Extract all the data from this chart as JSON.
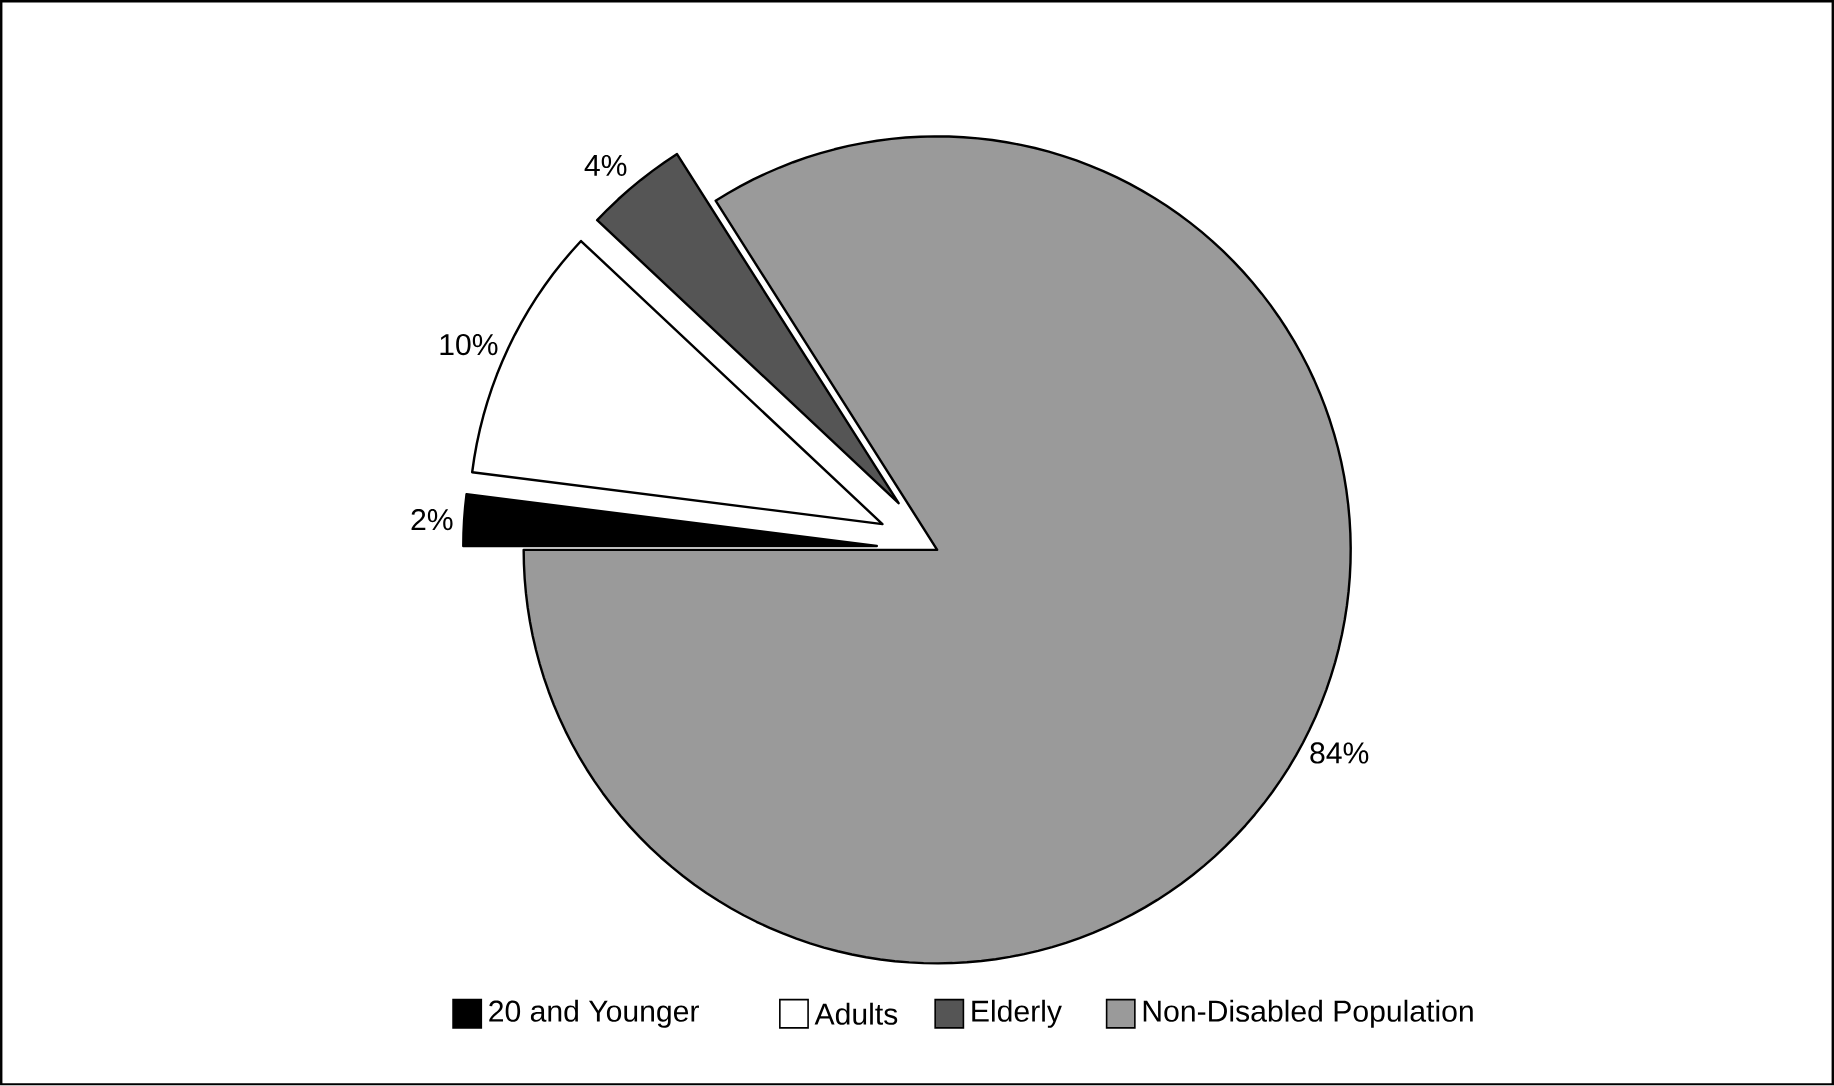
{
  "chart_data": {
    "type": "pie",
    "categories": [
      "20 and Younger",
      "Adults",
      "Elderly",
      "Non-Disabled Population"
    ],
    "values": [
      2,
      10,
      4,
      84
    ],
    "colors": [
      "#000000",
      "#ffffff",
      "#555555",
      "#9a9a9a"
    ],
    "value_labels": [
      "2%",
      "10%",
      "4%",
      "84%"
    ],
    "legend": "bottom"
  }
}
